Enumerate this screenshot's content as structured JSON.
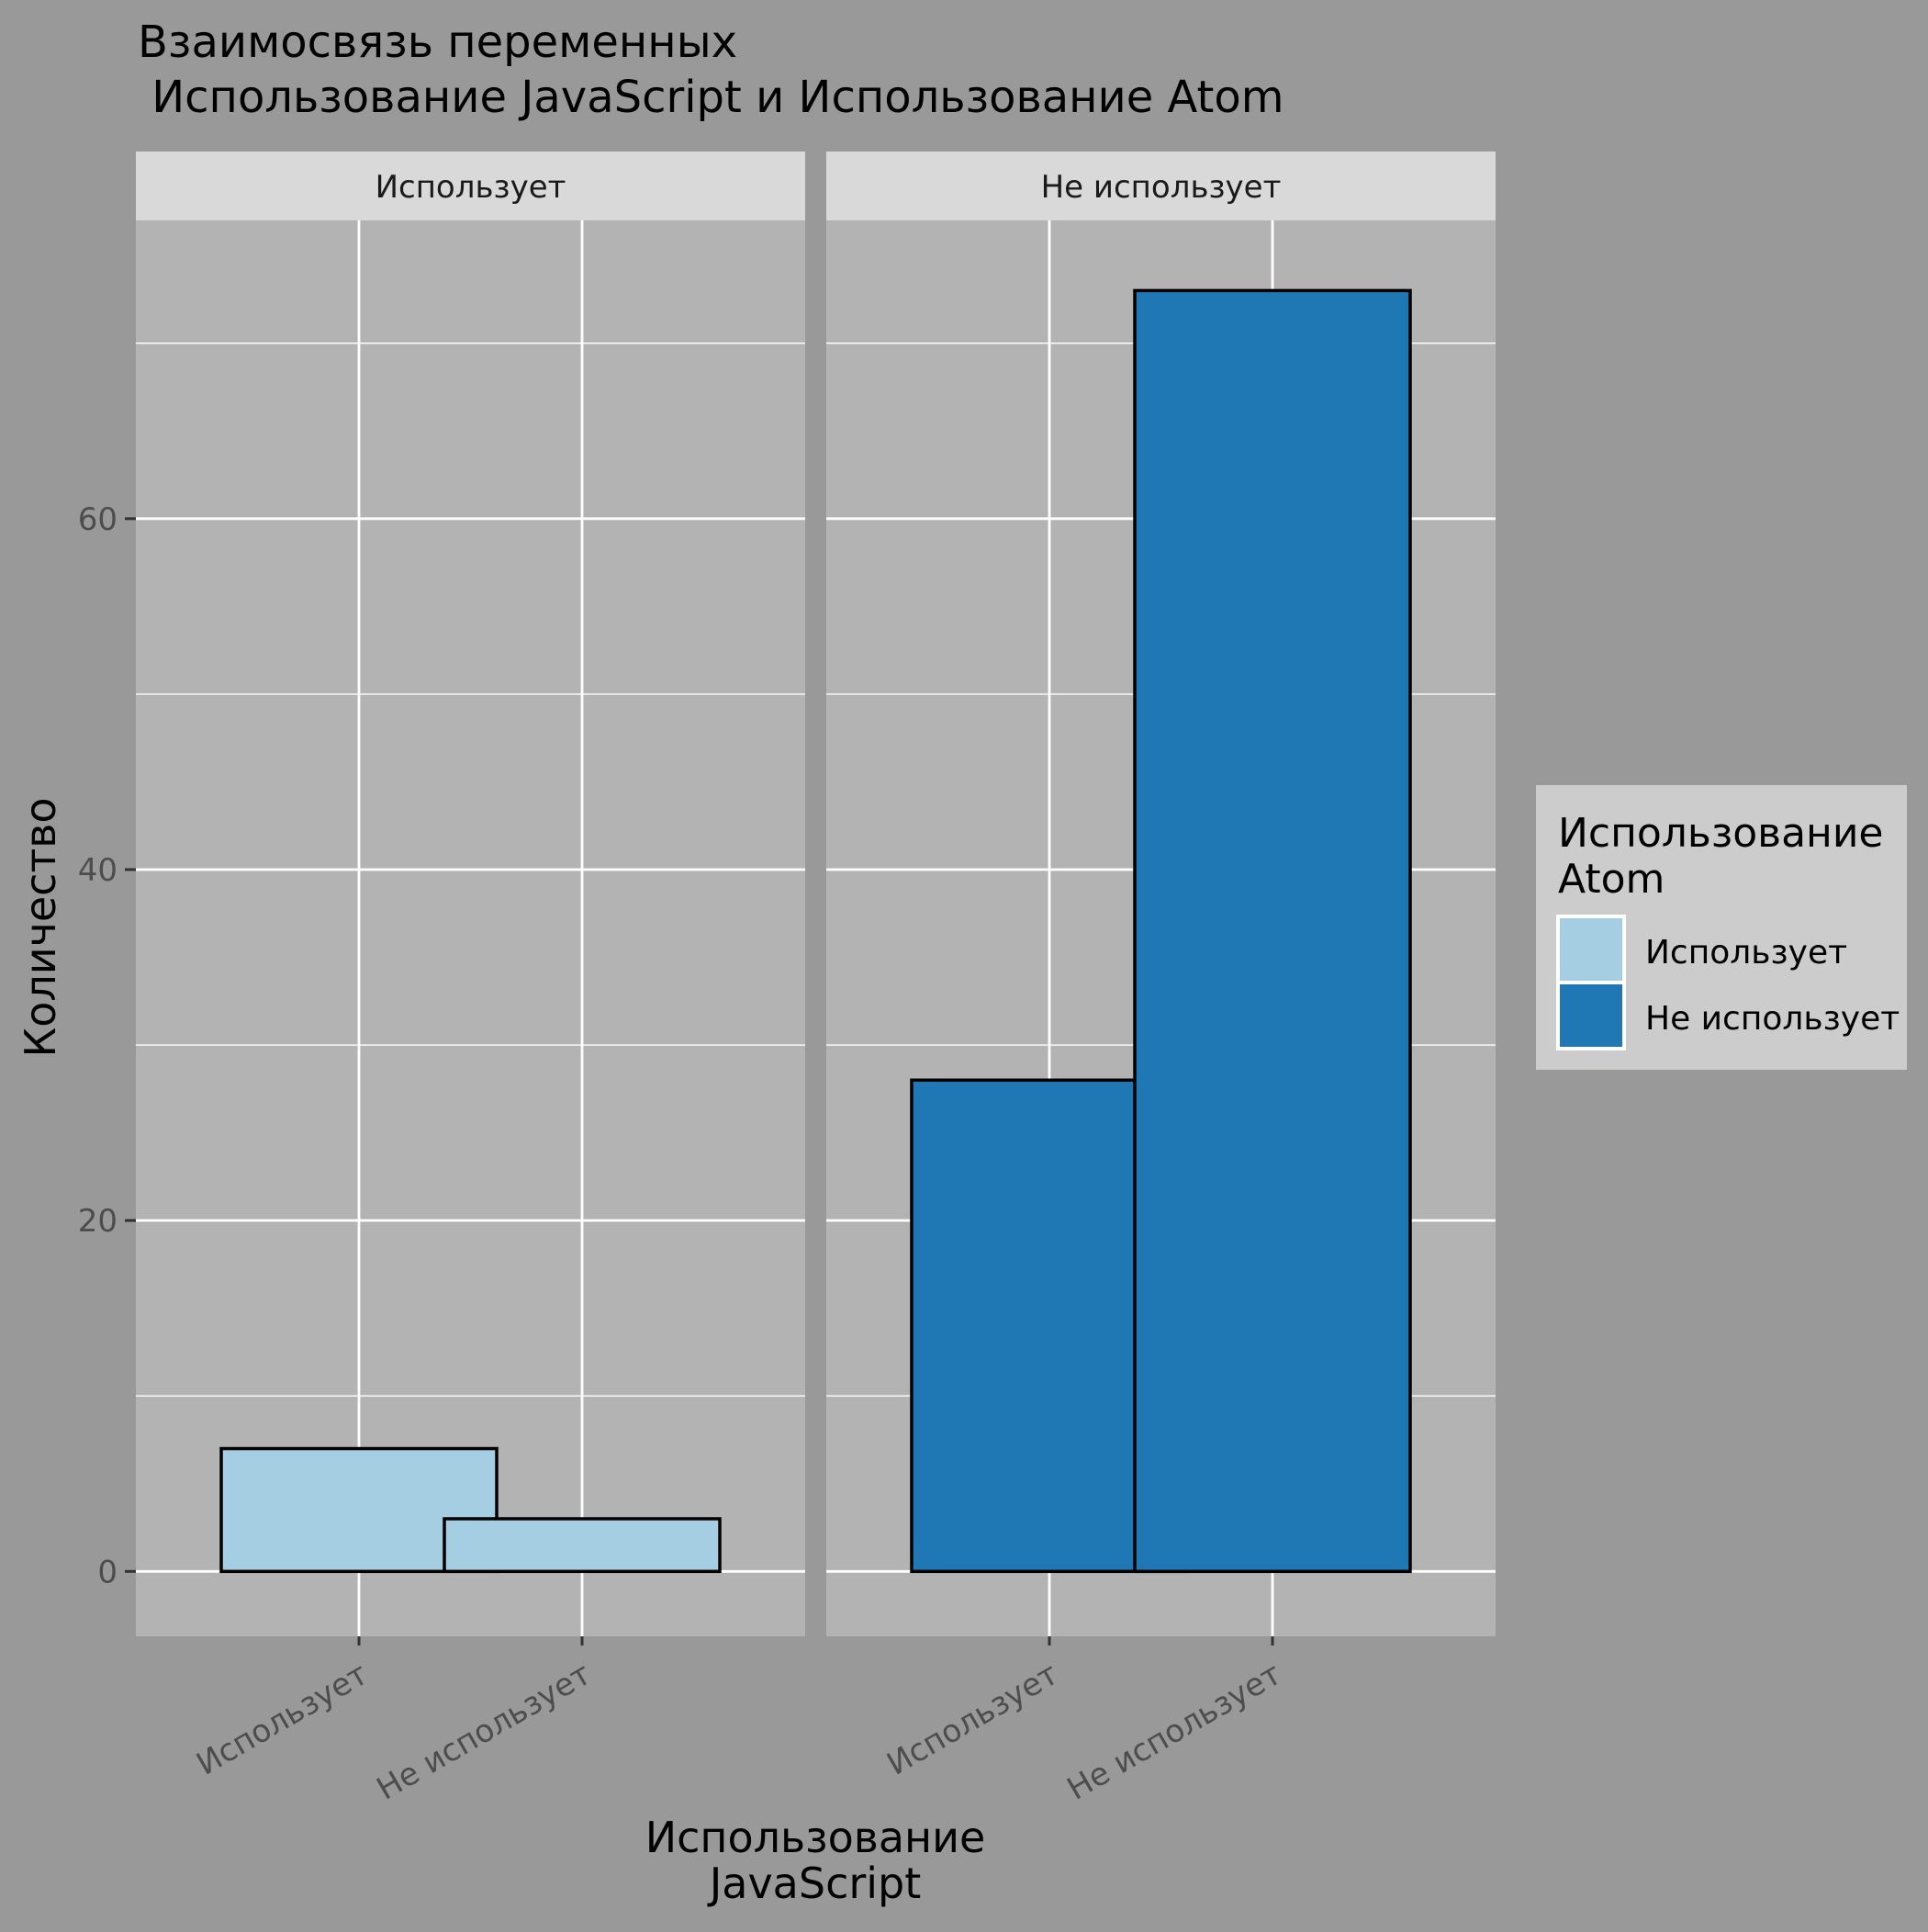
{
  "chart_data": {
    "type": "bar",
    "title_line1": "Взаимосвязь переменных",
    "title_line2": " Использование JavaScript и Использование Atom",
    "xlabel_line1": "Использование",
    "xlabel_line2": "JavaScript",
    "ylabel": "Количество",
    "ylim": [
      -3.7,
      77.0
    ],
    "yticks": [
      0,
      20,
      40,
      60
    ],
    "ytick_labels": [
      "0",
      "20",
      "40",
      "60"
    ],
    "categories": [
      "Использует",
      "Не использует"
    ],
    "facets": [
      {
        "label": "Использует",
        "bars": [
          {
            "category": "Использует",
            "value": 7,
            "fill": "Использует"
          },
          {
            "category": "Не использует",
            "value": 3,
            "fill": "Использует"
          }
        ]
      },
      {
        "label": "Не использует",
        "bars": [
          {
            "category": "Использует",
            "value": 28,
            "fill": "Не использует"
          },
          {
            "category": "Не использует",
            "value": 73,
            "fill": "Не использует"
          }
        ]
      }
    ],
    "legend": {
      "title_line1": "Использование",
      "title_line2": "Atom",
      "position": "right",
      "entries": [
        {
          "label": "Использует",
          "color": "#A6CEE3"
        },
        {
          "label": "Не использует",
          "color": "#1F78B4"
        }
      ]
    },
    "colors": {
      "page_bg": "#999999",
      "panel_bg": "#B3B3B3",
      "strip_bg": "#D9D9D9",
      "legend_bg": "#CCCCCC",
      "grid": "#FFFFFF",
      "bar_outline": "#000000",
      "axis_text": "#4D4D4D",
      "text": "#000000"
    }
  }
}
